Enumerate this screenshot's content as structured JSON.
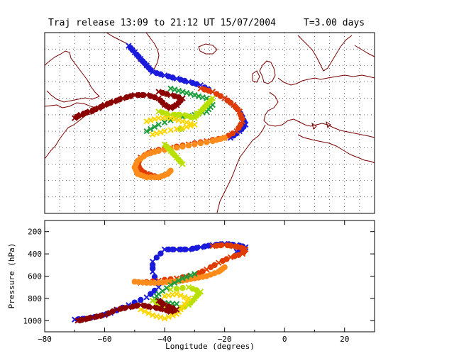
{
  "title": "Traj release 13:09 to 21:12 UT 15/07/2004",
  "duration": "T=3.00 days",
  "chart_data": [
    {
      "panel": "map",
      "type": "scatter",
      "lon_range": [
        -80,
        30
      ],
      "lat_range": [
        15,
        70
      ],
      "grid": "dotted, 5 degree spacing",
      "coastline_color": "#7a0000",
      "series": [
        {
          "color": "#1a1adc",
          "marker": "x/circle",
          "points": [
            [
              -52,
              66
            ],
            [
              -50,
              64
            ],
            [
              -48,
              62
            ],
            [
              -46,
              60
            ],
            [
              -44,
              58
            ],
            [
              -40,
              57
            ],
            [
              -36,
              56
            ],
            [
              -32,
              55
            ],
            [
              -28,
              54
            ],
            [
              -24,
              52
            ],
            [
              -20,
              50
            ],
            [
              -17,
              48
            ],
            [
              -15,
              46
            ],
            [
              -14,
              44
            ],
            [
              -13,
              42
            ],
            [
              -15,
              40
            ],
            [
              -18,
              38
            ]
          ]
        },
        {
          "color": "#e03c00",
          "marker": "x/circle",
          "points": [
            [
              -28,
              53
            ],
            [
              -24,
              52
            ],
            [
              -20,
              50
            ],
            [
              -17,
              48
            ],
            [
              -15,
              46
            ],
            [
              -14,
              43
            ],
            [
              -16,
              40
            ],
            [
              -20,
              38
            ],
            [
              -26,
              37
            ],
            [
              -32,
              36
            ],
            [
              -38,
              35
            ],
            [
              -44,
              34
            ],
            [
              -48,
              32
            ],
            [
              -49,
              30
            ],
            [
              -48,
              28
            ],
            [
              -46,
              27
            ],
            [
              -42,
              26
            ]
          ]
        },
        {
          "color": "#ff8c1a",
          "marker": "circle",
          "points": [
            [
              -20,
              38
            ],
            [
              -24,
              37
            ],
            [
              -30,
              36
            ],
            [
              -36,
              35
            ],
            [
              -42,
              34
            ],
            [
              -46,
              33
            ],
            [
              -49,
              31
            ],
            [
              -50,
              29
            ],
            [
              -49,
              27
            ],
            [
              -46,
              26
            ],
            [
              -42,
              26
            ],
            [
              -39,
              27
            ],
            [
              -38,
              28
            ]
          ]
        },
        {
          "color": "#1e9e3c",
          "marker": "x",
          "points": [
            [
              -38,
              53
            ],
            [
              -34,
              52
            ],
            [
              -30,
              51
            ],
            [
              -26,
              50
            ],
            [
              -24,
              48
            ],
            [
              -26,
              46
            ],
            [
              -30,
              45
            ],
            [
              -36,
              44
            ],
            [
              -42,
              42
            ],
            [
              -46,
              40
            ]
          ]
        },
        {
          "color": "#b8e000",
          "marker": "x/circle",
          "points": [
            [
              -42,
              46
            ],
            [
              -38,
              45
            ],
            [
              -34,
              45
            ],
            [
              -30,
              44
            ],
            [
              -28,
              46
            ],
            [
              -26,
              48
            ],
            [
              -24,
              50
            ],
            [
              -40,
              36
            ],
            [
              -38,
              34
            ],
            [
              -36,
              32
            ],
            [
              -34,
              30
            ]
          ]
        },
        {
          "color": "#ffd700",
          "marker": "x",
          "points": [
            [
              -46,
              43
            ],
            [
              -42,
              44
            ],
            [
              -38,
              44
            ],
            [
              -34,
              43
            ],
            [
              -30,
              42
            ],
            [
              -34,
              41
            ],
            [
              -40,
              40
            ],
            [
              -44,
              39
            ]
          ]
        },
        {
          "color": "#8b0000",
          "marker": "x/circle",
          "points": [
            [
              -70,
              44
            ],
            [
              -68,
              45
            ],
            [
              -65,
              46
            ],
            [
              -62,
              47
            ],
            [
              -60,
              48
            ],
            [
              -57,
              49
            ],
            [
              -54,
              50
            ],
            [
              -50,
              51
            ],
            [
              -46,
              51
            ],
            [
              -42,
              50
            ],
            [
              -40,
              48
            ],
            [
              -38,
              47
            ],
            [
              -36,
              48
            ],
            [
              -34,
              50
            ],
            [
              -38,
              51
            ],
            [
              -42,
              52
            ]
          ]
        }
      ]
    },
    {
      "panel": "cross-section",
      "type": "scatter",
      "xlabel": "Longitude  (degrees)",
      "ylabel": "Pressure  (hPa)",
      "xlim": [
        -80,
        30
      ],
      "ylim": [
        1100,
        100
      ],
      "x_ticks": [
        "−80",
        "−60",
        "−40",
        "−20",
        "0",
        "20"
      ],
      "y_ticks": [
        "200",
        "400",
        "600",
        "800",
        "1000"
      ],
      "series": [
        {
          "color": "#1a1adc",
          "marker": "x/circle",
          "points": [
            [
              -70,
              990
            ],
            [
              -66,
              980
            ],
            [
              -62,
              960
            ],
            [
              -58,
              930
            ],
            [
              -52,
              860
            ],
            [
              -46,
              790
            ],
            [
              -42,
              700
            ],
            [
              -44,
              560
            ],
            [
              -44,
              470
            ],
            [
              -40,
              360
            ],
            [
              -36,
              360
            ],
            [
              -32,
              360
            ],
            [
              -28,
              340
            ],
            [
              -24,
              320
            ],
            [
              -20,
              310
            ],
            [
              -16,
              320
            ],
            [
              -13,
              340
            ],
            [
              -16,
              380
            ]
          ]
        },
        {
          "color": "#e03c00",
          "marker": "x/circle",
          "points": [
            [
              -24,
              330
            ],
            [
              -20,
              320
            ],
            [
              -17,
              330
            ],
            [
              -15,
              340
            ],
            [
              -13,
              360
            ],
            [
              -14,
              400
            ],
            [
              -18,
              430
            ],
            [
              -22,
              480
            ],
            [
              -26,
              540
            ],
            [
              -30,
              590
            ],
            [
              -36,
              620
            ],
            [
              -42,
              640
            ],
            [
              -48,
              660
            ]
          ]
        },
        {
          "color": "#ff8c1a",
          "marker": "circle",
          "points": [
            [
              -50,
              650
            ],
            [
              -46,
              660
            ],
            [
              -42,
              660
            ],
            [
              -38,
              650
            ],
            [
              -34,
              640
            ],
            [
              -30,
              620
            ],
            [
              -26,
              600
            ],
            [
              -22,
              560
            ],
            [
              -20,
              520
            ]
          ]
        },
        {
          "color": "#1e9e3c",
          "marker": "x",
          "points": [
            [
              -30,
              580
            ],
            [
              -34,
              620
            ],
            [
              -38,
              680
            ],
            [
              -42,
              760
            ],
            [
              -44,
              820
            ],
            [
              -40,
              840
            ],
            [
              -36,
              850
            ]
          ]
        },
        {
          "color": "#b8e000",
          "marker": "x/circle",
          "points": [
            [
              -44,
              820
            ],
            [
              -40,
              880
            ],
            [
              -36,
              900
            ],
            [
              -32,
              860
            ],
            [
              -30,
              800
            ],
            [
              -28,
              740
            ],
            [
              -32,
              700
            ],
            [
              -38,
              720
            ]
          ]
        },
        {
          "color": "#ffd700",
          "marker": "x",
          "points": [
            [
              -48,
              900
            ],
            [
              -44,
              950
            ],
            [
              -40,
              980
            ],
            [
              -36,
              940
            ],
            [
              -34,
              880
            ],
            [
              -32,
              800
            ],
            [
              -36,
              760
            ],
            [
              -40,
              780
            ]
          ]
        },
        {
          "color": "#8b0000",
          "marker": "x/circle",
          "points": [
            [
              -69,
              1000
            ],
            [
              -67,
              990
            ],
            [
              -64,
              970
            ],
            [
              -60,
              950
            ],
            [
              -56,
              900
            ],
            [
              -52,
              880
            ],
            [
              -48,
              860
            ],
            [
              -44,
              880
            ],
            [
              -40,
              900
            ],
            [
              -38,
              920
            ],
            [
              -36,
              900
            ],
            [
              -40,
              860
            ],
            [
              -42,
              820
            ]
          ]
        }
      ]
    }
  ]
}
